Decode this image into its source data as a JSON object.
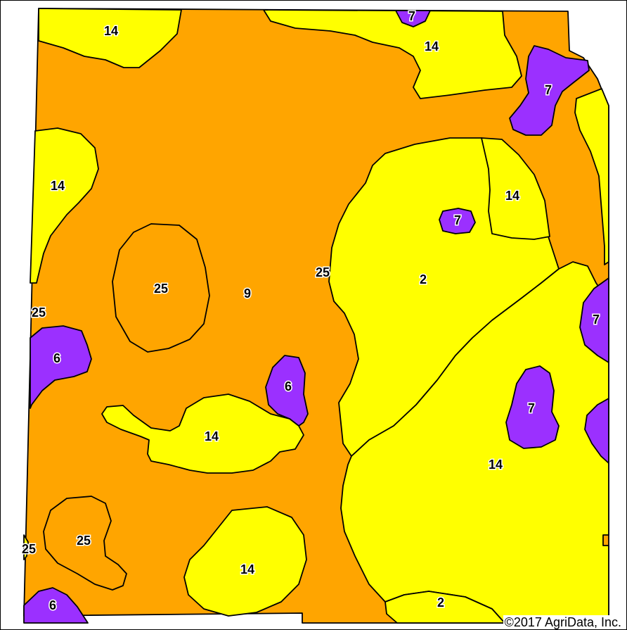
{
  "colors": {
    "orange": "#FFA500",
    "yellow": "#FFFF00",
    "purple": "#9B30FF",
    "boundary": "#000000"
  },
  "labels": {
    "l1": "14",
    "l2": "7",
    "l3": "14",
    "l4": "7",
    "l5": "14",
    "l6": "14",
    "l7": "7",
    "l8": "25",
    "l9": "9",
    "l10": "25",
    "l11": "2",
    "l12": "25",
    "l13": "6",
    "l14": "6",
    "l15": "7",
    "l16": "7",
    "l17": "14",
    "l18": "14",
    "l19": "25",
    "l20": "25",
    "l21": "14",
    "l22": "6",
    "l23": "2"
  },
  "copyright": "©2017 AgriData, Inc."
}
